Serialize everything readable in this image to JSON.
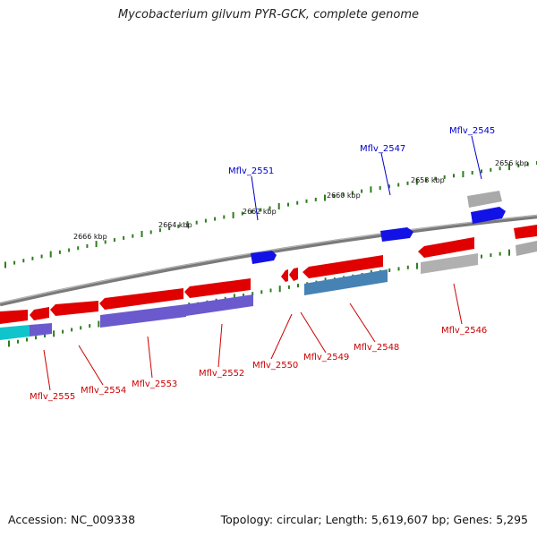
{
  "title": "Mycobacterium gilvum PYR-GCK, complete genome",
  "footer": {
    "accession": "Accession: NC_009338",
    "summary": "Topology: circular; Length: 5,619,607 bp; Genes: 5,295"
  },
  "colors": {
    "backbone": "#808080",
    "tick": "#2e7d1e",
    "forward_gene": "#1010e0",
    "reverse_gene": "#e00000",
    "forward_label": "#0000cc",
    "reverse_label": "#cc0000",
    "pseudo": "#a8a8a8",
    "purple": "#6a5acd",
    "steelblue": "#4682b4",
    "cyan": "#10c0c8"
  },
  "kbp_labels": [
    "2666 kbp",
    "2664 kbp",
    "2662 kbp",
    "2660 kbp",
    "2658 kbp",
    "2656 kbp"
  ],
  "forward_genes": [
    "Mflv_2551",
    "Mflv_2547",
    "Mflv_2545"
  ],
  "reverse_genes": [
    "Mflv_2555",
    "Mflv_2554",
    "Mflv_2553",
    "Mflv_2552",
    "Mflv_2550",
    "Mflv_2549",
    "Mflv_2548",
    "Mflv_2546"
  ]
}
